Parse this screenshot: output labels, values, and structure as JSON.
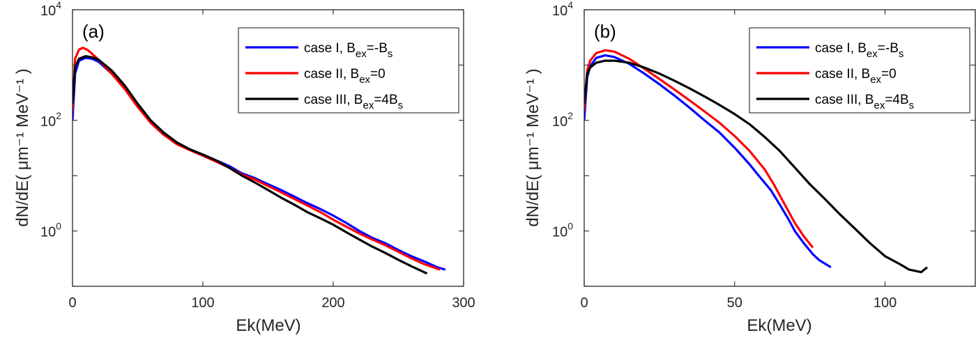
{
  "chart_data": [
    {
      "type": "line",
      "panel_label": "(a)",
      "xlabel": "Ek(MeV)",
      "ylabel": "dN/dE( μm⁻¹ MeV⁻¹ )",
      "xlim": [
        0,
        300
      ],
      "ylim": [
        0.1,
        10000
      ],
      "yscale": "log",
      "xticks": [
        "0",
        "100",
        "200",
        "300"
      ],
      "yticks": [
        "10^0",
        "10^2",
        "10^4"
      ],
      "legend_position": "top-right",
      "series": [
        {
          "name": "case I, Bex=-Bs",
          "color": "#0000ff",
          "x": [
            0,
            2,
            5,
            10,
            15,
            20,
            30,
            40,
            50,
            60,
            70,
            80,
            90,
            100,
            110,
            120,
            130,
            140,
            150,
            160,
            170,
            180,
            190,
            200,
            210,
            220,
            230,
            240,
            250,
            260,
            270,
            280,
            286
          ],
          "y": [
            100,
            700,
            1200,
            1350,
            1300,
            1150,
            700,
            380,
            180,
            90,
            55,
            38,
            30,
            24,
            19,
            15,
            11,
            9,
            7,
            5.5,
            4.2,
            3.2,
            2.5,
            1.9,
            1.4,
            1.0,
            0.75,
            0.6,
            0.45,
            0.35,
            0.28,
            0.22,
            0.2
          ]
        },
        {
          "name": "case II, Bex=0",
          "color": "#ff0000",
          "x": [
            0,
            2,
            5,
            8,
            12,
            20,
            30,
            40,
            50,
            60,
            70,
            80,
            90,
            100,
            110,
            120,
            130,
            140,
            150,
            160,
            170,
            180,
            190,
            200,
            210,
            220,
            230,
            240,
            250,
            260,
            270,
            282
          ],
          "y": [
            150,
            1300,
            1900,
            2050,
            1850,
            1250,
            700,
            370,
            175,
            90,
            55,
            37,
            29,
            23,
            18,
            14,
            10.5,
            8.5,
            6.5,
            5,
            3.8,
            2.9,
            2.2,
            1.6,
            1.2,
            0.9,
            0.7,
            0.55,
            0.42,
            0.32,
            0.25,
            0.2
          ]
        },
        {
          "name": "case III, Bex=4Bs",
          "color": "#000000",
          "x": [
            0,
            2,
            5,
            10,
            15,
            20,
            30,
            40,
            50,
            60,
            70,
            80,
            90,
            100,
            110,
            120,
            130,
            140,
            150,
            160,
            170,
            180,
            190,
            200,
            210,
            220,
            230,
            240,
            250,
            260,
            272
          ],
          "y": [
            200,
            900,
            1300,
            1450,
            1380,
            1250,
            800,
            430,
            200,
            100,
            60,
            40,
            30,
            24,
            19,
            14,
            10,
            7.5,
            5.5,
            4,
            3,
            2.2,
            1.7,
            1.3,
            0.95,
            0.7,
            0.52,
            0.4,
            0.3,
            0.23,
            0.17
          ]
        }
      ]
    },
    {
      "type": "line",
      "panel_label": "(b)",
      "xlabel": "Ek(MeV)",
      "ylabel": "dN/dE( μm⁻¹ MeV⁻¹ )",
      "xlim": [
        0,
        130
      ],
      "ylim": [
        0.1,
        10000
      ],
      "yscale": "log",
      "xticks": [
        "0",
        "50",
        "100"
      ],
      "yticks": [
        "10^0",
        "10^2",
        "10^4"
      ],
      "legend_position": "top-right",
      "series": [
        {
          "name": "case I, Bex=-Bs",
          "color": "#0000ff",
          "x": [
            0,
            1,
            2,
            4,
            7,
            10,
            15,
            20,
            25,
            30,
            35,
            40,
            45,
            50,
            55,
            58,
            62,
            65,
            68,
            70,
            73,
            76,
            78,
            82
          ],
          "y": [
            100,
            600,
            950,
            1350,
            1500,
            1400,
            1050,
            700,
            450,
            280,
            170,
            100,
            60,
            32,
            16,
            10,
            5.5,
            3,
            1.6,
            1.0,
            0.6,
            0.38,
            0.3,
            0.22
          ]
        },
        {
          "name": "case II, Bex=0",
          "color": "#ff0000",
          "x": [
            0,
            1,
            2,
            4,
            7,
            10,
            15,
            20,
            25,
            30,
            35,
            40,
            45,
            50,
            55,
            60,
            63,
            66,
            70,
            73,
            76
          ],
          "y": [
            150,
            800,
            1200,
            1650,
            1850,
            1750,
            1300,
            860,
            560,
            360,
            230,
            145,
            90,
            52,
            28,
            13,
            7,
            3.5,
            1.4,
            0.8,
            0.5
          ]
        },
        {
          "name": "case III, Bex=4Bs",
          "color": "#000000",
          "x": [
            0,
            1,
            2,
            4,
            7,
            10,
            15,
            20,
            25,
            30,
            35,
            40,
            45,
            50,
            55,
            60,
            65,
            70,
            75,
            80,
            85,
            90,
            95,
            100,
            105,
            108,
            112,
            114
          ],
          "y": [
            200,
            700,
            900,
            1100,
            1200,
            1200,
            1100,
            900,
            700,
            520,
            380,
            270,
            190,
            130,
            85,
            50,
            28,
            14,
            7,
            3.8,
            2.0,
            1.1,
            0.6,
            0.35,
            0.25,
            0.2,
            0.18,
            0.22
          ]
        }
      ]
    }
  ]
}
